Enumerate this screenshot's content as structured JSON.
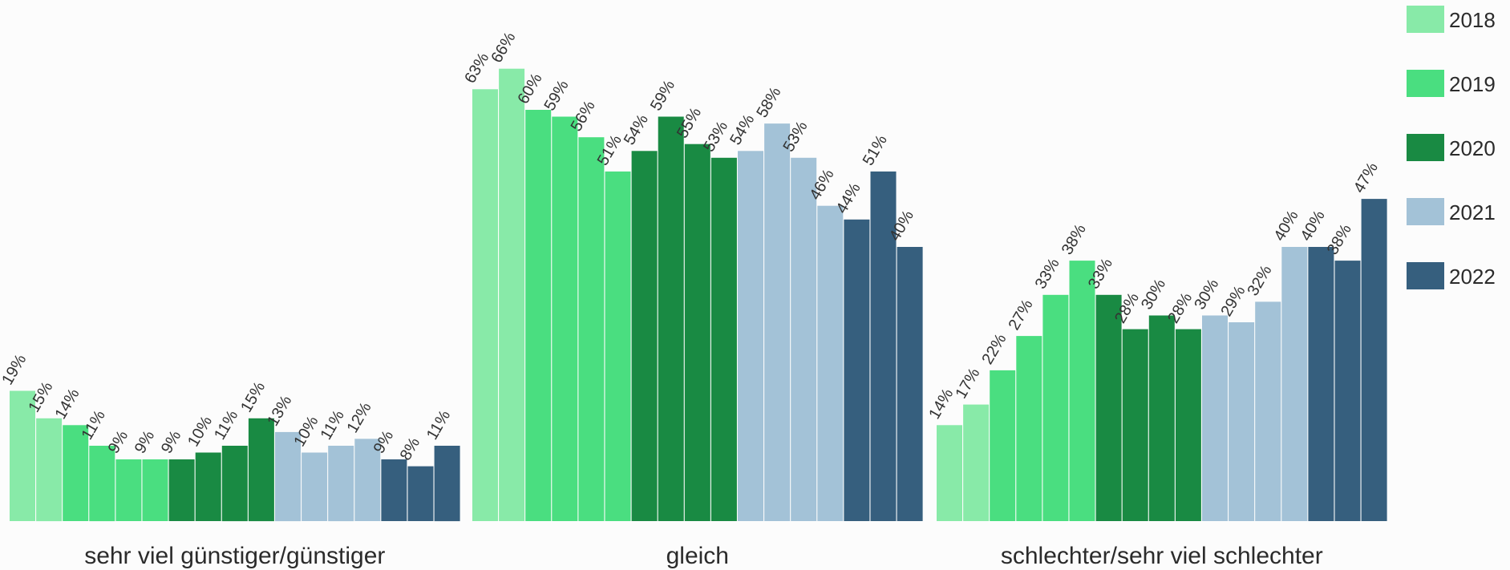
{
  "colors": {
    "2018": "#88eaa8",
    "2019": "#4ade80",
    "2020": "#198a43",
    "2021": "#a3c2d7",
    "2022": "#365f7e"
  },
  "chart_data": {
    "type": "bar",
    "ylim": [
      0,
      70
    ],
    "grid": false,
    "legend": {
      "position": "right",
      "entries": [
        "2018",
        "2019",
        "2020",
        "2021",
        "2022"
      ]
    },
    "groups": [
      {
        "label": "sehr viel günstiger/günstiger",
        "bars": [
          {
            "year": "2018",
            "value": 19,
            "label": "19%"
          },
          {
            "year": "2018",
            "value": 15,
            "label": "15%"
          },
          {
            "year": "2019",
            "value": 14,
            "label": "14%"
          },
          {
            "year": "2019",
            "value": 11,
            "label": "11%"
          },
          {
            "year": "2019",
            "value": 9,
            "label": "9%"
          },
          {
            "year": "2019",
            "value": 9,
            "label": "9%"
          },
          {
            "year": "2020",
            "value": 9,
            "label": "9%"
          },
          {
            "year": "2020",
            "value": 10,
            "label": "10%"
          },
          {
            "year": "2020",
            "value": 11,
            "label": "11%"
          },
          {
            "year": "2020",
            "value": 15,
            "label": "15%"
          },
          {
            "year": "2021",
            "value": 13,
            "label": "13%"
          },
          {
            "year": "2021",
            "value": 10,
            "label": "10%"
          },
          {
            "year": "2021",
            "value": 11,
            "label": "11%"
          },
          {
            "year": "2021",
            "value": 12,
            "label": "12%"
          },
          {
            "year": "2022",
            "value": 9,
            "label": "9%"
          },
          {
            "year": "2022",
            "value": 8,
            "label": "8%"
          },
          {
            "year": "2022",
            "value": 11,
            "label": "11%"
          }
        ]
      },
      {
        "label": "gleich",
        "bars": [
          {
            "year": "2018",
            "value": 63,
            "label": "63%"
          },
          {
            "year": "2018",
            "value": 66,
            "label": "66%"
          },
          {
            "year": "2019",
            "value": 60,
            "label": "60%"
          },
          {
            "year": "2019",
            "value": 59,
            "label": "59%"
          },
          {
            "year": "2019",
            "value": 56,
            "label": "56%"
          },
          {
            "year": "2019",
            "value": 51,
            "label": "51%"
          },
          {
            "year": "2020",
            "value": 54,
            "label": "54%"
          },
          {
            "year": "2020",
            "value": 59,
            "label": "59%"
          },
          {
            "year": "2020",
            "value": 55,
            "label": "55%"
          },
          {
            "year": "2020",
            "value": 53,
            "label": "53%"
          },
          {
            "year": "2021",
            "value": 54,
            "label": "54%"
          },
          {
            "year": "2021",
            "value": 58,
            "label": "58%"
          },
          {
            "year": "2021",
            "value": 53,
            "label": "53%"
          },
          {
            "year": "2021",
            "value": 46,
            "label": "46%"
          },
          {
            "year": "2022",
            "value": 44,
            "label": "44%"
          },
          {
            "year": "2022",
            "value": 51,
            "label": "51%"
          },
          {
            "year": "2022",
            "value": 40,
            "label": "40%"
          }
        ]
      },
      {
        "label": "schlechter/sehr viel schlechter",
        "bars": [
          {
            "year": "2018",
            "value": 14,
            "label": "14%"
          },
          {
            "year": "2018",
            "value": 17,
            "label": "17%"
          },
          {
            "year": "2019",
            "value": 22,
            "label": "22%"
          },
          {
            "year": "2019",
            "value": 27,
            "label": "27%"
          },
          {
            "year": "2019",
            "value": 33,
            "label": "33%"
          },
          {
            "year": "2019",
            "value": 38,
            "label": "38%"
          },
          {
            "year": "2020",
            "value": 33,
            "label": "33%"
          },
          {
            "year": "2020",
            "value": 28,
            "label": "28%"
          },
          {
            "year": "2020",
            "value": 30,
            "label": "30%"
          },
          {
            "year": "2020",
            "value": 28,
            "label": "28%"
          },
          {
            "year": "2021",
            "value": 30,
            "label": "30%"
          },
          {
            "year": "2021",
            "value": 29,
            "label": "29%"
          },
          {
            "year": "2021",
            "value": 32,
            "label": "32%"
          },
          {
            "year": "2021",
            "value": 40,
            "label": "40%"
          },
          {
            "year": "2022",
            "value": 40,
            "label": "40%"
          },
          {
            "year": "2022",
            "value": 38,
            "label": "38%"
          },
          {
            "year": "2022",
            "value": 47,
            "label": "47%"
          }
        ]
      }
    ]
  }
}
